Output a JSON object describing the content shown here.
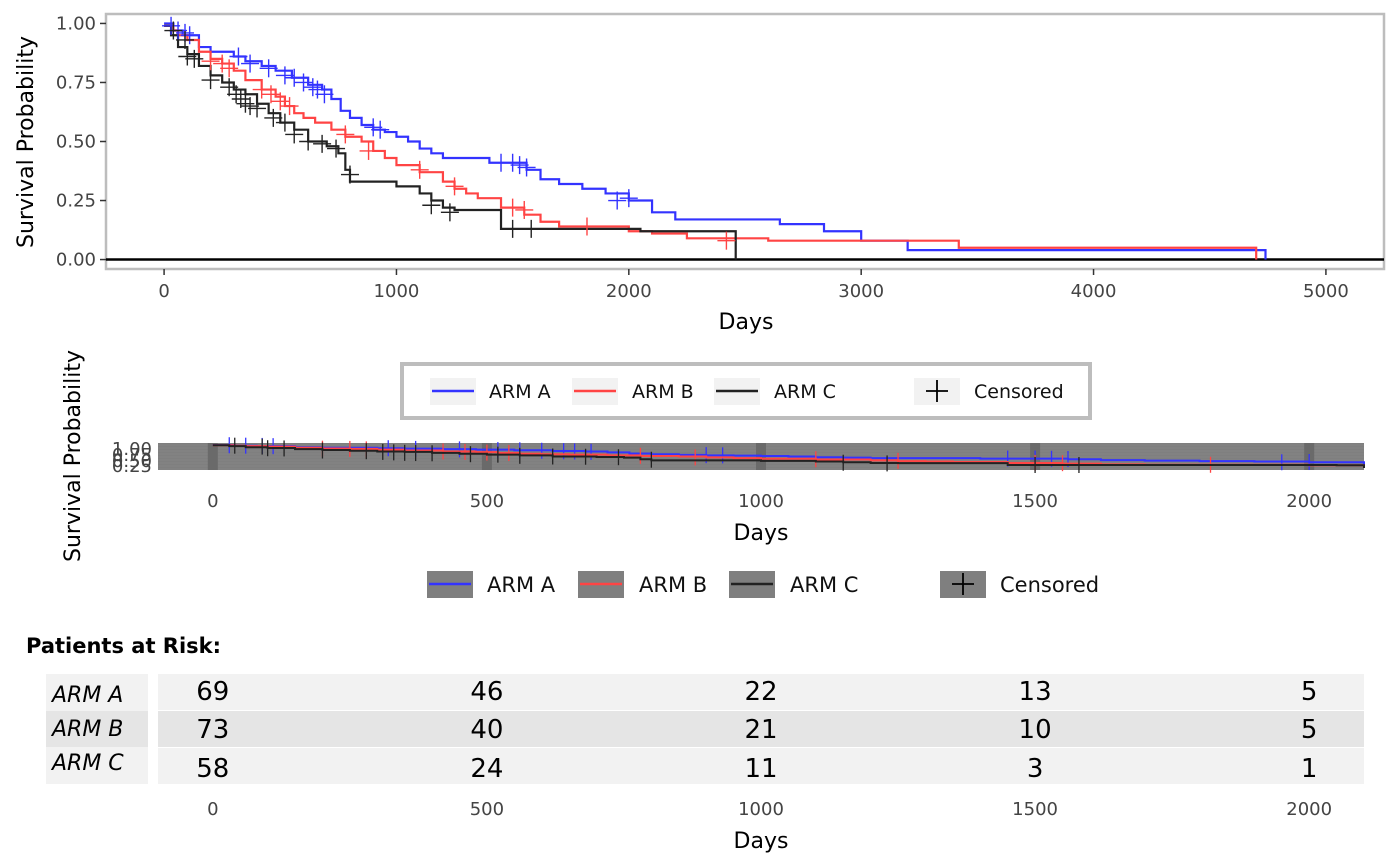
{
  "colors": {
    "arm_a": "#3333ff",
    "arm_b": "#ff4444",
    "arm_c": "#222222"
  },
  "chart_data": [
    {
      "type": "line",
      "xlabel": "Days",
      "ylabel": "Survival Probability",
      "xlim": [
        -250,
        5250
      ],
      "ylim": [
        -0.04,
        1.04
      ],
      "x_ticks": [
        0,
        1000,
        2000,
        3000,
        4000,
        5000
      ],
      "y_ticks": [
        "0.00",
        "0.25",
        "0.50",
        "0.75",
        "1.00"
      ],
      "y_tick_values": [
        0,
        0.25,
        0.5,
        0.75,
        1
      ],
      "grid": false,
      "legend": {
        "position": "bottom",
        "items": [
          "ARM A",
          "ARM B",
          "ARM C"
        ],
        "censor_label": "Censored"
      },
      "series": [
        {
          "name": "ARM A",
          "steps": [
            [
              0,
              1
            ],
            [
              40,
              0.97
            ],
            [
              80,
              0.95
            ],
            [
              150,
              0.9
            ],
            [
              200,
              0.88
            ],
            [
              300,
              0.86
            ],
            [
              350,
              0.84
            ],
            [
              420,
              0.82
            ],
            [
              480,
              0.8
            ],
            [
              550,
              0.77
            ],
            [
              620,
              0.74
            ],
            [
              680,
              0.72
            ],
            [
              720,
              0.68
            ],
            [
              760,
              0.63
            ],
            [
              800,
              0.6
            ],
            [
              850,
              0.57
            ],
            [
              900,
              0.55
            ],
            [
              950,
              0.54
            ],
            [
              1000,
              0.52
            ],
            [
              1050,
              0.5
            ],
            [
              1100,
              0.47
            ],
            [
              1150,
              0.45
            ],
            [
              1200,
              0.43
            ],
            [
              1300,
              0.43
            ],
            [
              1400,
              0.41
            ],
            [
              1560,
              0.38
            ],
            [
              1620,
              0.34
            ],
            [
              1700,
              0.32
            ],
            [
              1800,
              0.3
            ],
            [
              1900,
              0.28
            ],
            [
              2000,
              0.25
            ],
            [
              2100,
              0.2
            ],
            [
              2200,
              0.17
            ],
            [
              2650,
              0.15
            ],
            [
              2840,
              0.12
            ],
            [
              3000,
              0.08
            ],
            [
              3200,
              0.04
            ],
            [
              4740,
              0.0
            ]
          ],
          "censored": [
            [
              30,
              0.99
            ],
            [
              60,
              0.97
            ],
            [
              90,
              0.96
            ],
            [
              110,
              0.95
            ],
            [
              320,
              0.86
            ],
            [
              370,
              0.83
            ],
            [
              450,
              0.81
            ],
            [
              520,
              0.78
            ],
            [
              560,
              0.77
            ],
            [
              600,
              0.75
            ],
            [
              640,
              0.73
            ],
            [
              660,
              0.72
            ],
            [
              690,
              0.7
            ],
            [
              900,
              0.56
            ],
            [
              930,
              0.55
            ],
            [
              1450,
              0.41
            ],
            [
              1500,
              0.41
            ],
            [
              1530,
              0.4
            ],
            [
              1560,
              0.39
            ],
            [
              1950,
              0.25
            ],
            [
              2000,
              0.26
            ]
          ]
        },
        {
          "name": "ARM B",
          "steps": [
            [
              0,
              0.99
            ],
            [
              40,
              0.97
            ],
            [
              60,
              0.95
            ],
            [
              100,
              0.93
            ],
            [
              150,
              0.88
            ],
            [
              200,
              0.85
            ],
            [
              250,
              0.83
            ],
            [
              300,
              0.8
            ],
            [
              350,
              0.76
            ],
            [
              420,
              0.72
            ],
            [
              480,
              0.69
            ],
            [
              520,
              0.65
            ],
            [
              560,
              0.62
            ],
            [
              600,
              0.6
            ],
            [
              650,
              0.58
            ],
            [
              720,
              0.55
            ],
            [
              780,
              0.52
            ],
            [
              850,
              0.5
            ],
            [
              900,
              0.46
            ],
            [
              950,
              0.43
            ],
            [
              1000,
              0.4
            ],
            [
              1100,
              0.37
            ],
            [
              1200,
              0.33
            ],
            [
              1250,
              0.3
            ],
            [
              1300,
              0.28
            ],
            [
              1350,
              0.26
            ],
            [
              1450,
              0.22
            ],
            [
              1550,
              0.19
            ],
            [
              1620,
              0.16
            ],
            [
              1700,
              0.14
            ],
            [
              2000,
              0.12
            ],
            [
              2100,
              0.11
            ],
            [
              2250,
              0.09
            ],
            [
              2600,
              0.08
            ],
            [
              3400,
              0.08
            ],
            [
              3420,
              0.05
            ],
            [
              4700,
              0.0
            ]
          ],
          "censored": [
            [
              200,
              0.84
            ],
            [
              250,
              0.83
            ],
            [
              280,
              0.81
            ],
            [
              420,
              0.72
            ],
            [
              460,
              0.7
            ],
            [
              500,
              0.67
            ],
            [
              540,
              0.65
            ],
            [
              780,
              0.53
            ],
            [
              880,
              0.46
            ],
            [
              1100,
              0.38
            ],
            [
              1250,
              0.31
            ],
            [
              1500,
              0.22
            ],
            [
              1550,
              0.21
            ],
            [
              1820,
              0.14
            ],
            [
              2420,
              0.08
            ]
          ]
        },
        {
          "name": "ARM C",
          "steps": [
            [
              0,
              0.99
            ],
            [
              30,
              0.95
            ],
            [
              60,
              0.9
            ],
            [
              100,
              0.87
            ],
            [
              150,
              0.82
            ],
            [
              200,
              0.78
            ],
            [
              250,
              0.75
            ],
            [
              300,
              0.72
            ],
            [
              350,
              0.7
            ],
            [
              400,
              0.66
            ],
            [
              450,
              0.62
            ],
            [
              500,
              0.58
            ],
            [
              560,
              0.55
            ],
            [
              620,
              0.5
            ],
            [
              700,
              0.48
            ],
            [
              750,
              0.45
            ],
            [
              780,
              0.38
            ],
            [
              800,
              0.33
            ],
            [
              1000,
              0.31
            ],
            [
              1100,
              0.28
            ],
            [
              1150,
              0.25
            ],
            [
              1200,
              0.22
            ],
            [
              1250,
              0.21
            ],
            [
              1450,
              0.13
            ],
            [
              1750,
              0.13
            ],
            [
              2050,
              0.12
            ],
            [
              2440,
              0.12
            ],
            [
              2460,
              0.0
            ]
          ],
          "censored": [
            [
              40,
              0.97
            ],
            [
              90,
              0.93
            ],
            [
              100,
              0.86
            ],
            [
              130,
              0.85
            ],
            [
              200,
              0.76
            ],
            [
              280,
              0.73
            ],
            [
              310,
              0.7
            ],
            [
              330,
              0.68
            ],
            [
              350,
              0.66
            ],
            [
              370,
              0.65
            ],
            [
              400,
              0.64
            ],
            [
              470,
              0.6
            ],
            [
              520,
              0.58
            ],
            [
              560,
              0.53
            ],
            [
              620,
              0.5
            ],
            [
              680,
              0.49
            ],
            [
              740,
              0.47
            ],
            [
              800,
              0.36
            ],
            [
              1150,
              0.23
            ],
            [
              1230,
              0.2
            ],
            [
              1500,
              0.13
            ],
            [
              1580,
              0.13
            ]
          ]
        }
      ]
    },
    {
      "type": "line",
      "xlabel": "Days",
      "ylabel": "Survival Probability",
      "xlim": [
        -100,
        2100
      ],
      "x_ticks": [
        0,
        500,
        1000,
        1500,
        2000
      ],
      "y_ticks": [
        "0.25",
        "0.50",
        "0.75",
        "1.00"
      ],
      "legend": {
        "position": "bottom",
        "items": [
          "ARM A",
          "ARM B",
          "ARM C"
        ],
        "censor_label": "Censored"
      }
    },
    {
      "type": "table",
      "title": "Patients at Risk:",
      "xlabel": "Days",
      "x_ticks": [
        0,
        500,
        1000,
        1500,
        2000
      ],
      "rows": [
        {
          "arm": "ARM A",
          "counts": [
            "69",
            "46",
            "22",
            "13",
            "5"
          ]
        },
        {
          "arm": "ARM B",
          "counts": [
            "73",
            "40",
            "21",
            "10",
            "5"
          ]
        },
        {
          "arm": "ARM C",
          "counts": [
            "58",
            "24",
            "11",
            "3",
            "1"
          ]
        }
      ]
    }
  ]
}
